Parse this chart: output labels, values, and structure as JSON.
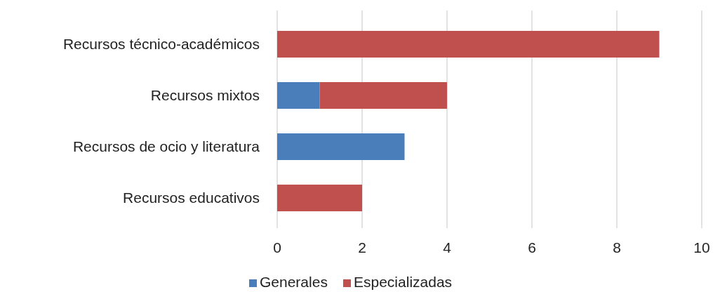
{
  "chart_data": {
    "type": "bar",
    "orientation": "horizontal",
    "stacked": true,
    "categories": [
      "Recursos técnico-académicos",
      "Recursos mixtos",
      "Recursos de ocio y literatura",
      "Recursos educativos"
    ],
    "series": [
      {
        "name": "Generales",
        "color": "#4a7ebb",
        "values": [
          null,
          1,
          3,
          null
        ]
      },
      {
        "name": "Especializadas",
        "color": "#c0504d",
        "values": [
          9,
          3,
          null,
          2
        ]
      }
    ],
    "xlim": [
      0,
      10
    ],
    "xticks": [
      0,
      2,
      4,
      6,
      8,
      10
    ],
    "grid": "x",
    "legend": "bottom"
  }
}
